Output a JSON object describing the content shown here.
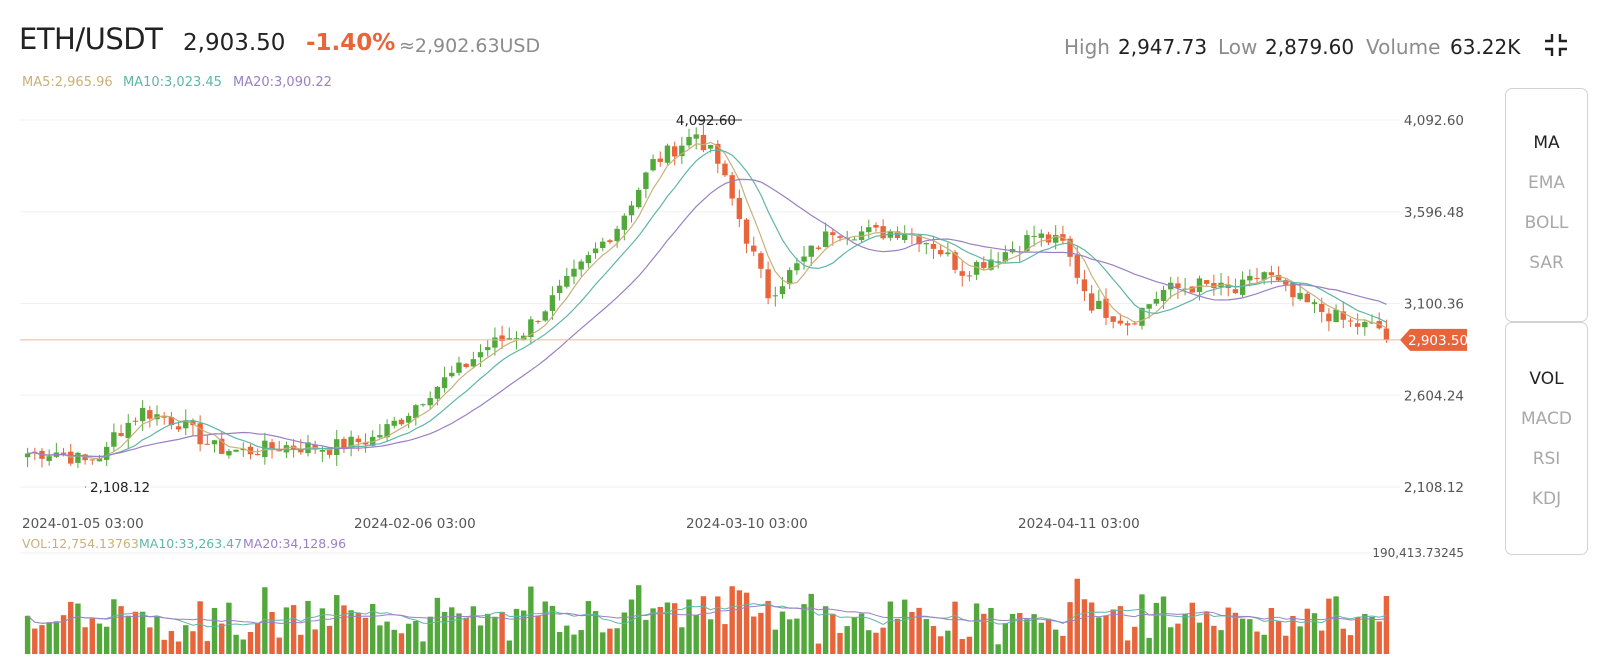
{
  "header": {
    "pair": "ETH/USDT",
    "price": "2,903.50",
    "change": "-1.40%",
    "usd": "≈2,902.63USD",
    "high_label": "High",
    "high_value": "2,947.73",
    "low_label": "Low",
    "low_value": "2,879.60",
    "volume_label": "Volume",
    "volume_value": "63.22K",
    "collapse_icon": "collapse-icon"
  },
  "ma_legend": {
    "ma5": "MA5:2,965.96",
    "ma10": "MA10:3,023.45",
    "ma20": "MA20:3,090.22"
  },
  "vol_legend": {
    "vol": "VOL:12,754.13763",
    "ma10": "MA10:33,263.47",
    "ma20": "MA20:34,128.96"
  },
  "indicators_main": [
    "MA",
    "EMA",
    "BOLL",
    "SAR"
  ],
  "indicators_sub": [
    "VOL",
    "MACD",
    "RSI",
    "KDJ"
  ],
  "colors": {
    "up": "#52a83a",
    "down": "#e8643a",
    "ma5": "#c8b07a",
    "ma10": "#5fb5a8",
    "ma20": "#9b7fc4",
    "current_line": "#f3b49a"
  },
  "chart_data": {
    "type": "candlestick",
    "price_axis_ticks": [
      "4,092.60",
      "3,596.48",
      "3,100.36",
      "2,604.24",
      "2,108.12"
    ],
    "price_range": [
      2108.12,
      4092.6
    ],
    "x_axis_ticks": [
      "2024-01-05 03:00",
      "2024-02-06 03:00",
      "2024-03-10 03:00",
      "2024-04-11 03:00"
    ],
    "max_label": "4,092.60",
    "min_label": "2,108.12",
    "current_price_label": "2,903.50",
    "current_price": 2903.5,
    "volume_max_label": "190,413.73245",
    "volume_max": 190413.73,
    "grid": true
  }
}
